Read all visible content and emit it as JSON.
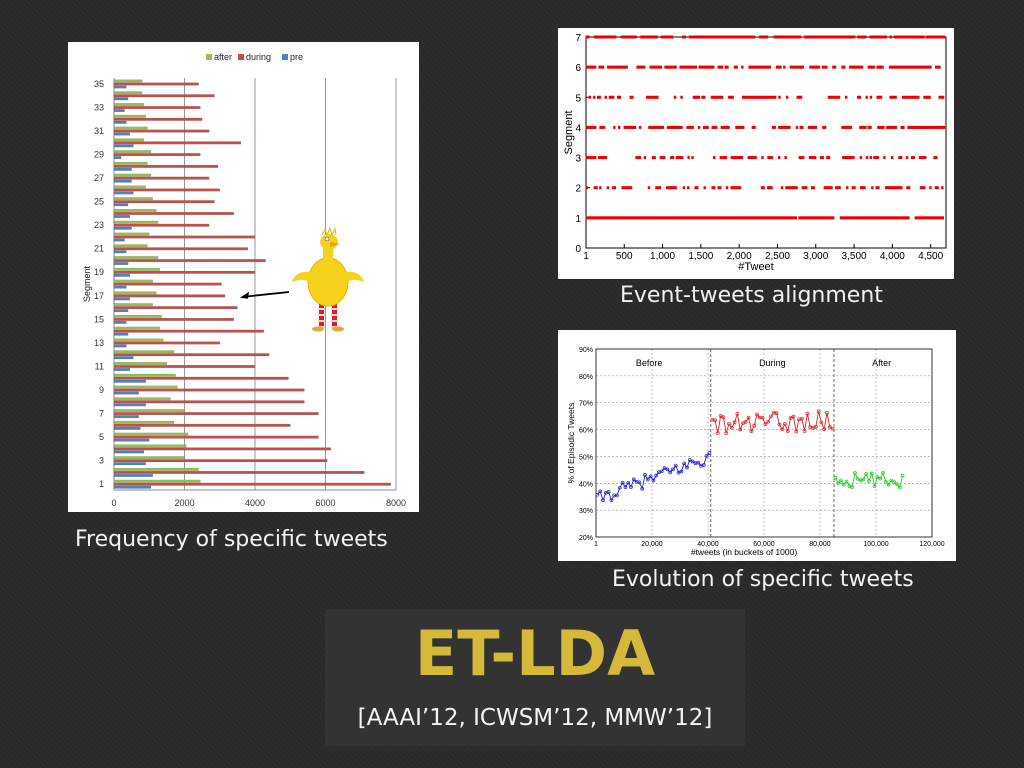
{
  "slide": {
    "title": "ET-LDA",
    "subtitle": "[AAAI’12, ICWSM’12, MMW’12]",
    "colors": {
      "background": "#2a2a2a",
      "title": "#d5b93a",
      "title_box": "#333333"
    },
    "captions": {
      "left": "Frequency of specific tweets",
      "top_right": "Event-tweets alignment",
      "bottom_right": "Evolution of specific tweets"
    }
  },
  "chart_data": [
    {
      "type": "bar",
      "orientation": "horizontal",
      "ylabel": "Segment",
      "xlim": [
        0,
        8000
      ],
      "xticks": [
        0,
        2000,
        4000,
        6000,
        8000
      ],
      "ytick_labels": [
        "1",
        "3",
        "5",
        "7",
        "9",
        "11",
        "13",
        "15",
        "17",
        "19",
        "21",
        "23",
        "25",
        "27",
        "29",
        "31",
        "33",
        "35"
      ],
      "categories": [
        "1",
        "2",
        "3",
        "4",
        "5",
        "6",
        "7",
        "8",
        "9",
        "10",
        "11",
        "12",
        "13",
        "14",
        "15",
        "16",
        "17",
        "18",
        "19",
        "20",
        "21",
        "22",
        "23",
        "24",
        "25",
        "26",
        "27",
        "28",
        "29",
        "30",
        "31",
        "32",
        "33",
        "34",
        "35"
      ],
      "legend": [
        "after",
        "during",
        "pre"
      ],
      "legend_position": "top",
      "grid": "vertical",
      "series": [
        {
          "name": "after",
          "color": "#9bbb59",
          "values": [
            2450,
            2400,
            2000,
            2050,
            2100,
            1700,
            2000,
            1600,
            1800,
            1750,
            1500,
            1700,
            1400,
            1300,
            1350,
            1100,
            1200,
            1100,
            1300,
            1250,
            950,
            1000,
            1250,
            1200,
            1100,
            900,
            1050,
            950,
            1050,
            850,
            950,
            900,
            850,
            800,
            800
          ]
        },
        {
          "name": "during",
          "color": "#c0504d",
          "values": [
            7850,
            7100,
            6050,
            6150,
            5800,
            5000,
            5800,
            5400,
            5400,
            4950,
            4000,
            4400,
            3000,
            4250,
            3400,
            3500,
            3150,
            3050,
            4000,
            4300,
            3800,
            4000,
            2700,
            3400,
            2850,
            3000,
            2700,
            2950,
            2450,
            3600,
            2700,
            2500,
            2450,
            2850,
            2400
          ]
        },
        {
          "name": "pre",
          "color": "#4f81bd",
          "values": [
            1050,
            1100,
            900,
            850,
            1000,
            750,
            700,
            900,
            700,
            900,
            450,
            550,
            350,
            400,
            350,
            400,
            450,
            350,
            450,
            400,
            350,
            300,
            500,
            450,
            400,
            550,
            500,
            500,
            200,
            550,
            450,
            350,
            300,
            400,
            350
          ]
        }
      ],
      "annotation": "arrow pointing to segment 17 bars"
    },
    {
      "type": "scatter",
      "xlabel": "#Tweet",
      "ylabel": "Segment",
      "xlim": [
        1,
        4700
      ],
      "ylim": [
        0,
        7
      ],
      "xtick_labels": [
        "1",
        "500",
        "1,000",
        "1,500",
        "2,000",
        "2,500",
        "3,000",
        "3,500",
        "4,000",
        "4,500"
      ],
      "ytick_labels": [
        "0",
        "1",
        "2",
        "3",
        "4",
        "5",
        "6",
        "7"
      ],
      "color": "#ee0000",
      "rows": [
        {
          "y": 1,
          "density": 0.97
        },
        {
          "y": 2,
          "density": 0.62
        },
        {
          "y": 3,
          "density": 0.55
        },
        {
          "y": 4,
          "density": 0.78
        },
        {
          "y": 5,
          "density": 0.68
        },
        {
          "y": 6,
          "density": 0.82
        },
        {
          "y": 7,
          "density": 0.9
        }
      ]
    },
    {
      "type": "line",
      "xlabel": "#tweets (in buckets of 1000)",
      "ylabel": "% of Episodic Tweets",
      "xlim": [
        0,
        120000
      ],
      "ylim": [
        20,
        90
      ],
      "xtick_labels": [
        "1",
        "20,000",
        "40,000",
        "60,000",
        "80,000",
        "100,000",
        "120,000"
      ],
      "ytick_labels": [
        "20%",
        "30%",
        "40%",
        "50%",
        "60%",
        "70%",
        "80%",
        "90%"
      ],
      "grid": true,
      "region_labels": [
        "Before",
        "During",
        "After"
      ],
      "region_boundaries": [
        41000,
        85000
      ],
      "series": [
        {
          "name": "Before",
          "color": "#2222cc",
          "x_range": [
            0,
            41000
          ],
          "trend_start": 34,
          "trend_end": 50,
          "noise": 2.5
        },
        {
          "name": "During",
          "color": "#dd2222",
          "x_range": [
            41000,
            85000
          ],
          "trend_start": 62,
          "trend_end": 63,
          "noise": 4.0
        },
        {
          "name": "After",
          "color": "#22cc22",
          "x_range": [
            85000,
            110000
          ],
          "trend_start": 41,
          "trend_end": 41,
          "noise": 3.0
        }
      ]
    }
  ]
}
